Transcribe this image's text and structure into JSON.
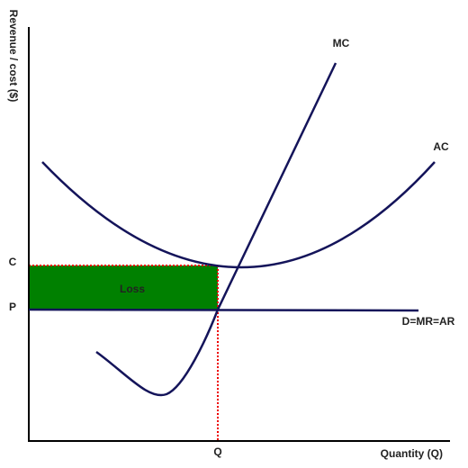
{
  "axes": {
    "y_label": "Revenue / cost ($)",
    "x_label": "Quantity (Q)"
  },
  "curves": {
    "mc": "MC",
    "ac": "AC",
    "demand": "D=MR=AR"
  },
  "levels": {
    "c": "C",
    "p": "P",
    "q": "Q"
  },
  "area_label": "Loss"
}
